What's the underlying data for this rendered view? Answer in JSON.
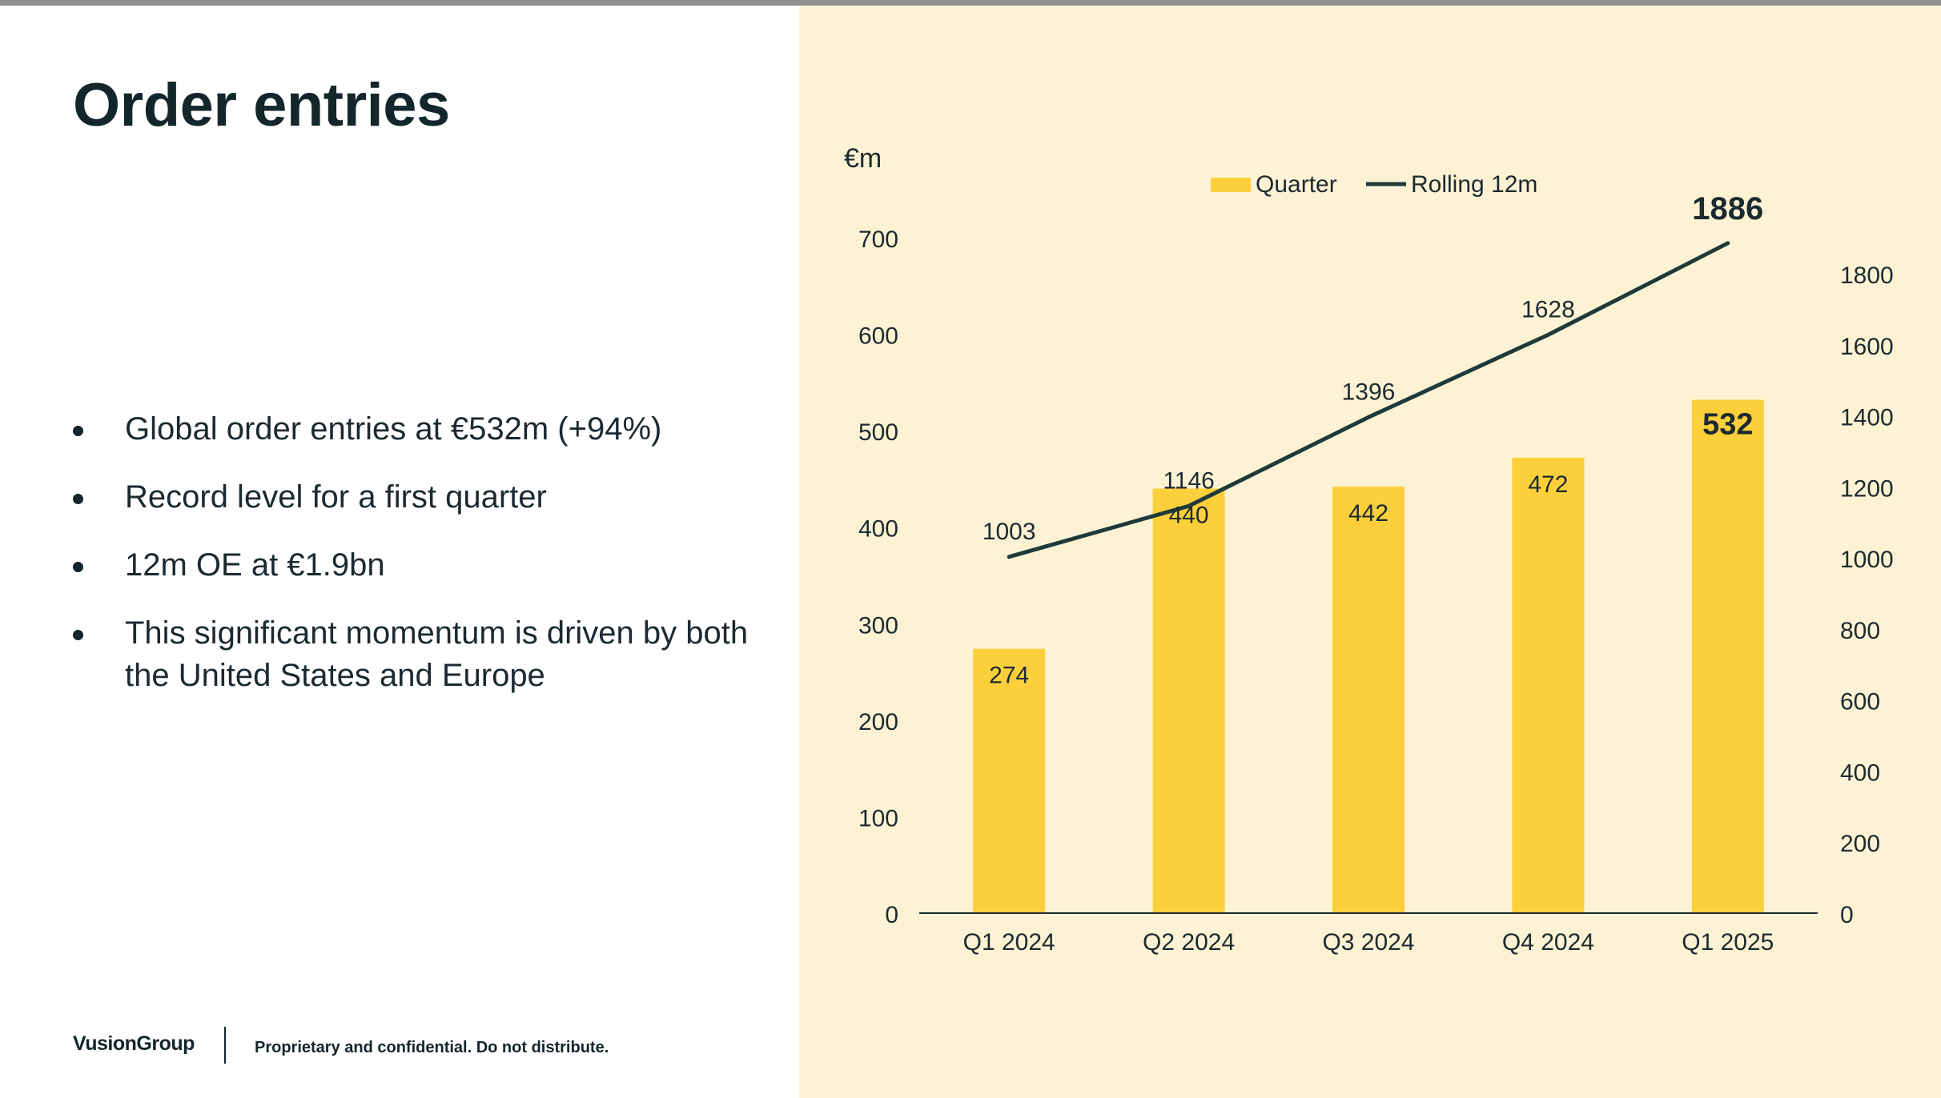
{
  "slide": {
    "title": "Order entries",
    "bullets": [
      "Global order entries at €532m (+94%)",
      "Record level for a first quarter",
      "12m OE at €1.9bn",
      "This significant momentum is driven by both the United States and Europe"
    ],
    "footer": {
      "logo": "VusionGroup",
      "note": "Proprietary and confidential. Do not distribute."
    }
  },
  "colors": {
    "panel_bg": "#fdf3d4",
    "bar": "#fccf3b",
    "line": "#1e3a3a",
    "text": "#1c2a30"
  },
  "chart_data": {
    "type": "bar",
    "unit_label": "€m",
    "categories": [
      "Q1 2024",
      "Q2 2024",
      "Q3 2024",
      "Q4 2024",
      "Q1 2025"
    ],
    "series": [
      {
        "name": "Quarter",
        "type": "bar",
        "axis": "left",
        "values": [
          274,
          440,
          442,
          472,
          532
        ],
        "data_labels": [
          "274",
          "440",
          "442",
          "472",
          "532"
        ]
      },
      {
        "name": "Rolling 12m",
        "type": "line",
        "axis": "right",
        "values": [
          1003,
          1146,
          1396,
          1628,
          1886
        ],
        "data_labels": [
          "1003",
          "1146",
          "1396",
          "1628",
          "1886"
        ]
      }
    ],
    "y_left": {
      "min": 0,
      "max": 700,
      "ticks": [
        "0",
        "100",
        "200",
        "300",
        "400",
        "500",
        "600",
        "700"
      ]
    },
    "y_right": {
      "min": 0,
      "max": 1800,
      "ticks": [
        "0",
        "200",
        "400",
        "600",
        "800",
        "1000",
        "1200",
        "1400",
        "1600",
        "1800"
      ]
    },
    "legend": {
      "placement": "top-center",
      "items": [
        "Quarter",
        "Rolling 12m"
      ]
    },
    "grid": false,
    "emphasized_last_point": true
  }
}
